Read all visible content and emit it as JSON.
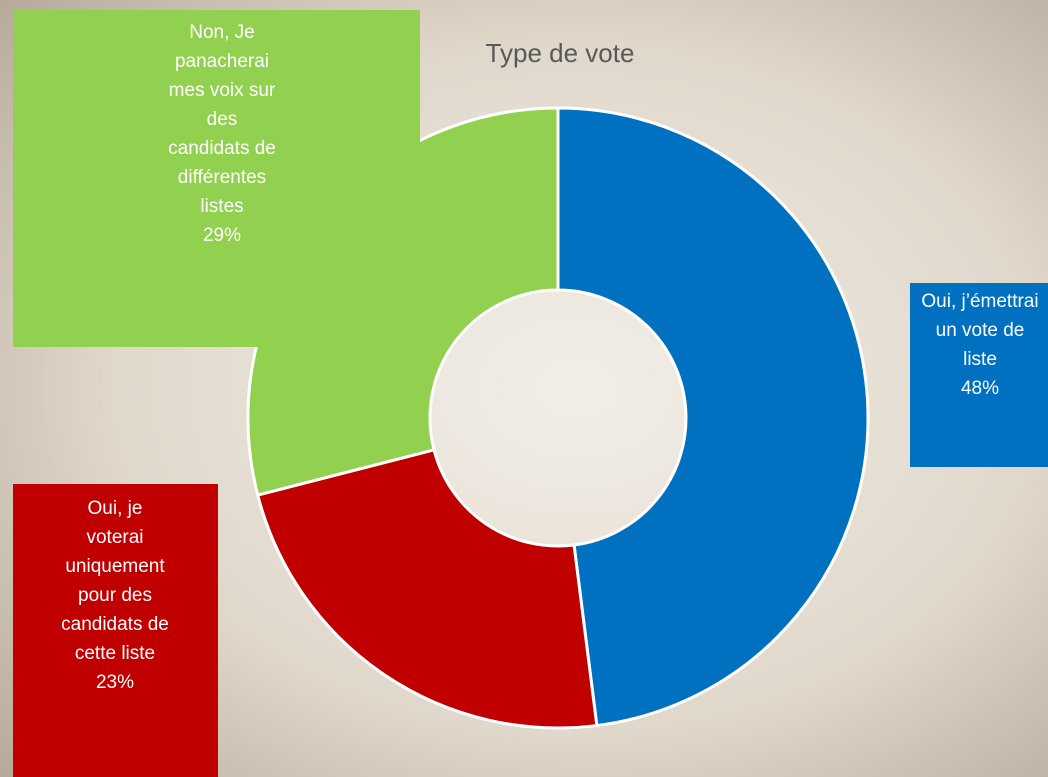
{
  "chart_data": {
    "type": "donut",
    "title": "Type de vote",
    "categories": [
      "Oui, j’émettrai un vote de liste",
      "Oui, je voterai uniquement pour des candidats de cette liste",
      "Non, Je panacherai mes voix sur des candidats de différentes listes"
    ],
    "values": [
      48,
      23,
      29
    ],
    "value_labels": [
      "48%",
      "23%",
      "29%"
    ],
    "colors": [
      "#0070c0",
      "#c00000",
      "#92d050"
    ]
  }
}
